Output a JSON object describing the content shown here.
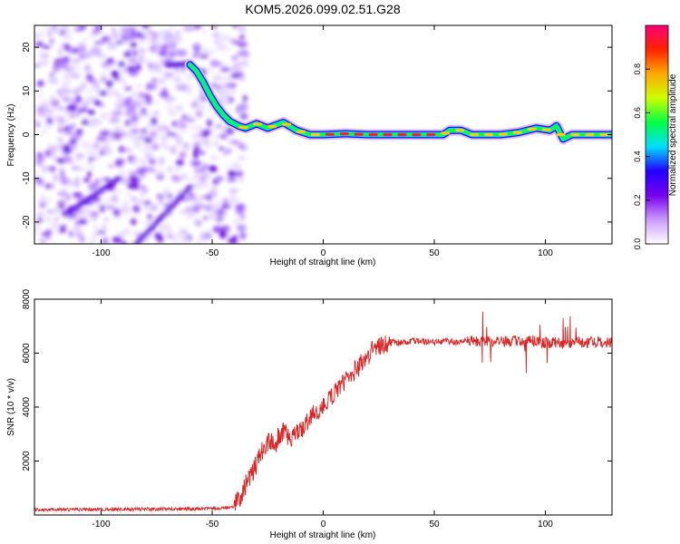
{
  "title": "KOM5.2026.099.02.51.G28",
  "chart_data": [
    {
      "type": "heatmap",
      "xlabel": "Height of straight line (km)",
      "ylabel": "Frequency (Hz)",
      "xlim": [
        -130,
        130
      ],
      "ylim": [
        -25,
        25
      ],
      "xticks": [
        -100,
        -50,
        0,
        50,
        100
      ],
      "xtick_labels": [
        "-100",
        "-50",
        "0",
        "50",
        "100"
      ],
      "yticks": [
        -20,
        -10,
        0,
        10,
        20
      ],
      "ytick_labels": [
        "-20",
        "-10",
        "0",
        "10",
        "20"
      ],
      "ridge": [
        {
          "x": -60,
          "y": 16
        },
        {
          "x": -57,
          "y": 14.5
        },
        {
          "x": -54,
          "y": 12
        },
        {
          "x": -51,
          "y": 9
        },
        {
          "x": -48,
          "y": 6.5
        },
        {
          "x": -45,
          "y": 4.5
        },
        {
          "x": -42,
          "y": 3
        },
        {
          "x": -38,
          "y": 2
        },
        {
          "x": -35,
          "y": 1.5
        },
        {
          "x": -30,
          "y": 2.5
        },
        {
          "x": -25,
          "y": 1.5
        },
        {
          "x": -18,
          "y": 2.8
        },
        {
          "x": -12,
          "y": 1
        },
        {
          "x": -6,
          "y": 0
        },
        {
          "x": 0,
          "y": 0
        },
        {
          "x": 10,
          "y": 0.2
        },
        {
          "x": 20,
          "y": 0
        },
        {
          "x": 40,
          "y": 0
        },
        {
          "x": 54,
          "y": 0
        },
        {
          "x": 57,
          "y": 1
        },
        {
          "x": 62,
          "y": 1
        },
        {
          "x": 67,
          "y": 0
        },
        {
          "x": 80,
          "y": 0
        },
        {
          "x": 88,
          "y": 0.5
        },
        {
          "x": 96,
          "y": 1.5
        },
        {
          "x": 102,
          "y": 1
        },
        {
          "x": 105,
          "y": 2
        },
        {
          "x": 108,
          "y": -1
        },
        {
          "x": 112,
          "y": 0
        },
        {
          "x": 130,
          "y": 0
        }
      ],
      "colorbar": {
        "label": "Normalized spectral amplitude",
        "range": [
          0,
          1
        ],
        "ticks": [
          0,
          0.2,
          0.4,
          0.6,
          0.8
        ],
        "tick_labels": [
          "0.0",
          "0.2",
          "0.4",
          "0.6",
          "0.8"
        ],
        "stops": [
          "#ffffff",
          "#cc99ff",
          "#7700ee",
          "#2200ff",
          "#00ddff",
          "#00ff44",
          "#ccff00",
          "#ffaa00",
          "#ff2200",
          "#ff0077"
        ]
      }
    },
    {
      "type": "line",
      "xlabel": "Height of straight line (km)",
      "ylabel": "SNR (10 * v/v)",
      "xlim": [
        -130,
        130
      ],
      "ylim": [
        0,
        8000
      ],
      "xticks": [
        -100,
        -50,
        0,
        50,
        100
      ],
      "xtick_labels": [
        "-100",
        "-50",
        "0",
        "50",
        "100"
      ],
      "yticks": [
        2000,
        4000,
        6000,
        8000
      ],
      "ytick_labels": [
        "2000",
        "4000",
        "6000",
        "8000"
      ],
      "color": "#dd2222",
      "series": [
        {
          "name": "SNR",
          "x": [
            -130,
            -110,
            -90,
            -70,
            -55,
            -45,
            -40,
            -38,
            -35,
            -32,
            -30,
            -28,
            -26,
            -24,
            -22,
            -20,
            -18,
            -15,
            -12,
            -10,
            -8,
            -5,
            -2,
            0,
            2,
            5,
            8,
            10,
            12,
            15,
            18,
            20,
            22,
            25,
            28,
            30,
            35,
            40,
            45,
            50,
            55,
            60,
            65,
            70,
            75,
            80,
            85,
            90,
            95,
            100,
            105,
            110,
            115,
            120,
            125,
            130
          ],
          "y": [
            200,
            200,
            210,
            220,
            230,
            250,
            300,
            600,
            1100,
            1500,
            1900,
            2300,
            2600,
            2800,
            2500,
            3000,
            3100,
            2900,
            3000,
            3200,
            3400,
            3700,
            3900,
            4000,
            4200,
            4500,
            4800,
            5000,
            5200,
            5400,
            5700,
            5900,
            6100,
            6250,
            6300,
            6400,
            6400,
            6450,
            6450,
            6400,
            6450,
            6400,
            6450,
            6400,
            6450,
            6400,
            6450,
            6400,
            6450,
            6400,
            6400,
            6350,
            6400,
            6400,
            6450,
            6400
          ]
        }
      ]
    }
  ]
}
